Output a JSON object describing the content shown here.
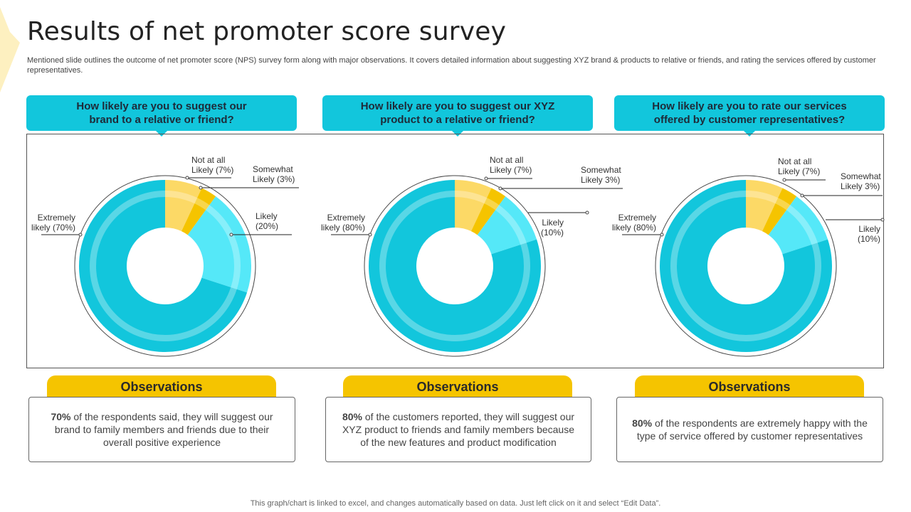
{
  "title": "Results of net promoter score survey",
  "subtitle": "Mentioned slide outlines the outcome of net promoter score (NPS) survey form along with major observations. It covers detailed information about suggesting XYZ brand & products to relative or friends, and rating the services offered by customer representatives.",
  "questions": [
    "How likely are you to suggest our brand to a relative or friend?",
    "How likely are you to suggest our XYZ product to a relative or friend?",
    "How likely are you to rate our services offered by customer representatives?"
  ],
  "observations": {
    "heading": "Observations",
    "items": [
      {
        "highlight": "70%",
        "text": " of the respondents said, they will suggest our brand to family members and friends due to their overall positive experience"
      },
      {
        "highlight": "80%",
        "text": " of the customers reported, they will suggest our XYZ  product to friends and family members because of the new features and product modification"
      },
      {
        "highlight": "80%",
        "text": " of the respondents are extremely happy with the type of service offered by customer representatives"
      }
    ]
  },
  "footer": "This graph/chart is linked to excel,  and changes automatically based on data. Just left click on it and select “Edit Data”.",
  "colors": {
    "not_at_all": "#fcd966",
    "somewhat": "#f5c400",
    "likely": "#55e8f8",
    "extremely": "#12c6dc",
    "accent": "#12c6dc",
    "observation": "#f5c400"
  },
  "chart_data": [
    {
      "type": "pie",
      "variant": "donut",
      "categories": [
        "Not at all Likely",
        "Somewhat Likely",
        "Likely",
        "Extremely likely"
      ],
      "values": [
        7,
        3,
        20,
        70
      ],
      "labels": [
        [
          "Not at all",
          "Likely (7%)"
        ],
        [
          "Somewhat",
          "Likely (3%)"
        ],
        [
          "Likely",
          "(20%)"
        ],
        [
          "Extremely",
          "likely (70%)"
        ]
      ]
    },
    {
      "type": "pie",
      "variant": "donut",
      "categories": [
        "Not at all Likely",
        "Somewhat Likely",
        "Likely",
        "Extremely likely"
      ],
      "values": [
        7,
        3,
        10,
        80
      ],
      "labels": [
        [
          "Not at all",
          "Likely (7%)"
        ],
        [
          "Somewhat",
          "Likely 3%)"
        ],
        [
          "Likely",
          "(10%)"
        ],
        [
          "Extremely",
          "likely (80%)"
        ]
      ]
    },
    {
      "type": "pie",
      "variant": "donut",
      "categories": [
        "Not at all Likely",
        "Somewhat Likely",
        "Likely",
        "Extremely likely"
      ],
      "values": [
        7,
        3,
        10,
        80
      ],
      "labels": [
        [
          "Not at all",
          "Likely (7%)"
        ],
        [
          "Somewhat",
          "Likely 3%)"
        ],
        [
          "Likely",
          "(10%)"
        ],
        [
          "Extremely",
          "likely (80%)"
        ]
      ]
    }
  ]
}
